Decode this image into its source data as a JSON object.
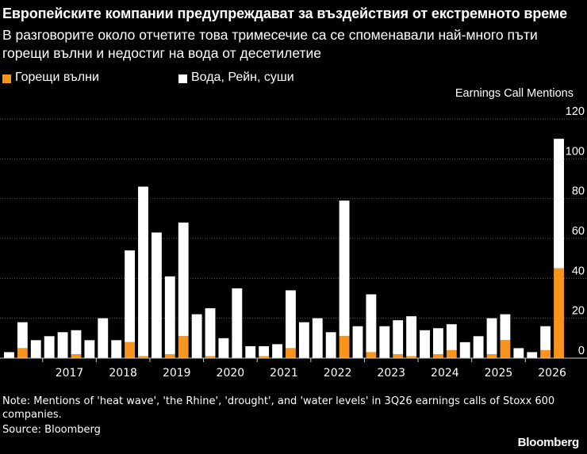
{
  "header": {
    "title": "Европейските компании предупреждават за въздействия от екстремното време",
    "subtitle": "В разговорите около отчетите това тримесечие са се споменавали най-много пъти горещи вълни и недостиг на вода от десетилетие"
  },
  "legend": {
    "heat_label": "Горещи вълни",
    "water_label": "Вода, Рейн, суши"
  },
  "footer": {
    "note": "Note: Mentions of 'heat wave', 'the Rhine', 'drought', and 'water levels' in 3Q26 earnings calls of Stoxx 600 companies.",
    "source": "Source: Bloomberg",
    "brand": "Bloomberg"
  },
  "colors": {
    "background": "#000000",
    "heat": "#f7941d",
    "water": "#ffffff",
    "grid": "#5a5a5a",
    "text": "#ffffff"
  },
  "chart_data": {
    "type": "bar",
    "stacked": true,
    "ylabel": "Earnings Call Mentions",
    "ylim": [
      0,
      120
    ],
    "yticks": [
      0,
      20,
      40,
      60,
      80,
      100,
      120
    ],
    "year_labels": [
      "2017",
      "2018",
      "2019",
      "2020",
      "2021",
      "2022",
      "2023",
      "2024",
      "2025",
      "2026"
    ],
    "quarters_per_year": 4,
    "first_quarter_index": 3,
    "grid": true,
    "legend_position": "top-left",
    "series": [
      {
        "name": "Горещи вълни",
        "values": [
          0,
          5,
          0,
          0,
          0,
          2,
          0,
          0,
          0,
          8,
          1,
          0,
          2,
          11,
          0,
          1,
          0,
          0,
          0,
          1,
          0,
          5,
          0,
          0,
          0,
          11,
          0,
          3,
          0,
          2,
          1,
          0,
          2,
          4,
          0,
          0,
          2,
          9,
          0,
          0,
          4,
          45
        ]
      },
      {
        "name": "Вода, Рейн, суши",
        "values": [
          3,
          13,
          9,
          11,
          13,
          12,
          9,
          20,
          9,
          46,
          85,
          63,
          39,
          57,
          22,
          24,
          10,
          35,
          6,
          5,
          7,
          29,
          18,
          20,
          13,
          68,
          16,
          29,
          16,
          17,
          20,
          14,
          13,
          13,
          8,
          11,
          18,
          13,
          5,
          3,
          12,
          65
        ]
      }
    ]
  }
}
